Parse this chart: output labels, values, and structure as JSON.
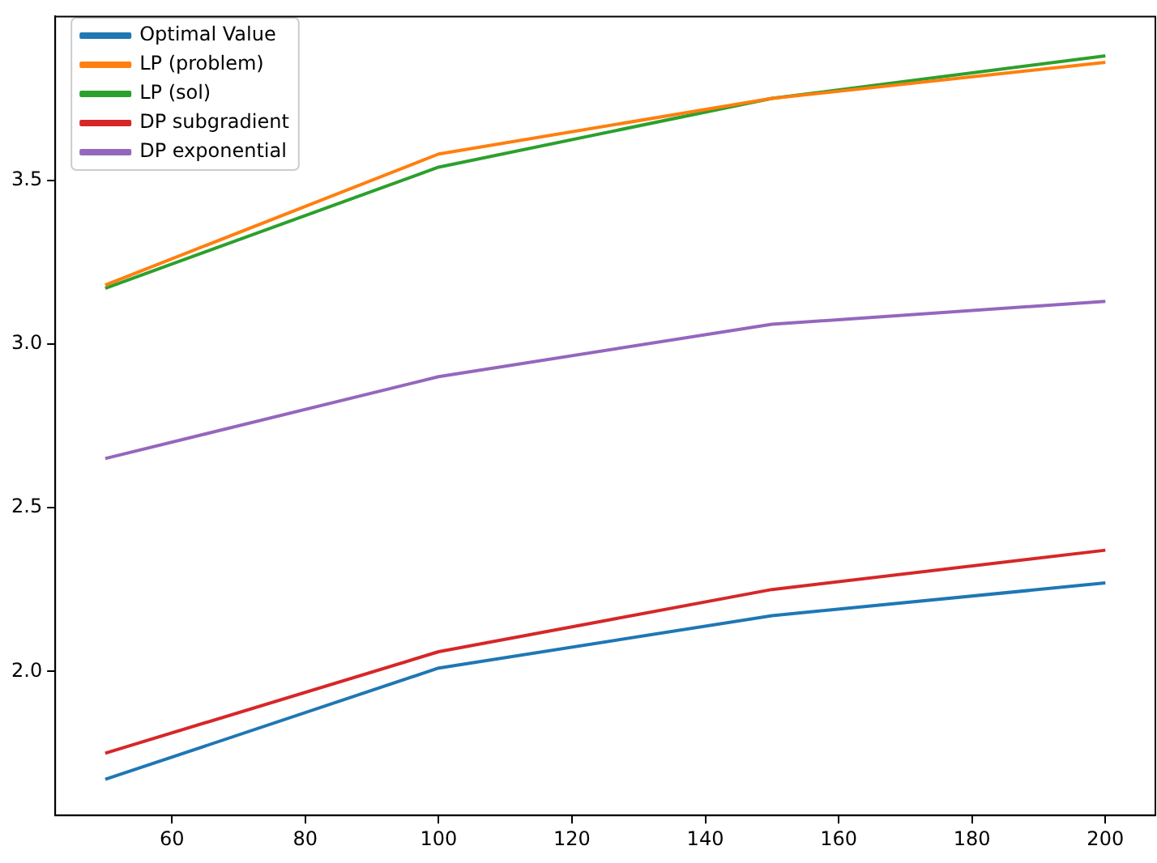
{
  "chart_data": {
    "type": "line",
    "x": [
      50,
      100,
      150,
      200
    ],
    "series": [
      {
        "name": "Optimal Value",
        "color": "#1f77b4",
        "values": [
          1.67,
          2.01,
          2.17,
          2.27
        ]
      },
      {
        "name": "LP (problem)",
        "color": "#ff7f0e",
        "values": [
          3.18,
          3.58,
          3.75,
          3.86
        ]
      },
      {
        "name": "LP (sol)",
        "color": "#2ca02c",
        "values": [
          3.17,
          3.54,
          3.75,
          3.88
        ]
      },
      {
        "name": "DP subgradient",
        "color": "#d62728",
        "values": [
          1.75,
          2.06,
          2.25,
          2.37
        ]
      },
      {
        "name": "DP exponential",
        "color": "#9467bd",
        "values": [
          2.65,
          2.9,
          3.06,
          3.13
        ]
      }
    ],
    "xlim": [
      42.5,
      207.5
    ],
    "xticks": [
      60,
      80,
      100,
      120,
      140,
      160,
      180,
      200
    ],
    "ylim": [
      1.56,
      4.0
    ],
    "yticks": [
      {
        "value": 2,
        "label": "2.0"
      },
      2.5,
      {
        "value": 3,
        "label": "3.0"
      },
      3.5
    ],
    "grid": false,
    "legend": "top left",
    "marker": "none",
    "line_style": "solid"
  }
}
